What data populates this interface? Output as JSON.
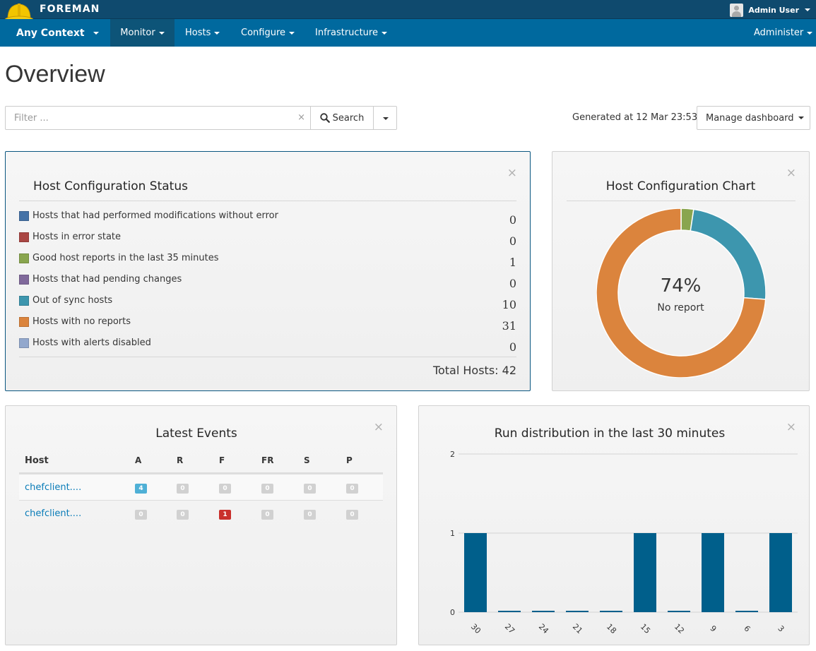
{
  "app": {
    "brand": "FOREMAN",
    "user": "Admin User"
  },
  "nav": {
    "context": "Any Context",
    "items": [
      "Monitor",
      "Hosts",
      "Configure",
      "Infrastructure"
    ],
    "admin": "Administer"
  },
  "page": {
    "title": "Overview"
  },
  "search": {
    "placeholder": "Filter ...",
    "clear": "×",
    "button": "Search",
    "generated": "Generated at 12 Mar 23:53",
    "manage": "Manage dashboard"
  },
  "status_widget": {
    "title": "Host Configuration Status",
    "rows": [
      {
        "label": "Hosts that had performed modifications without error",
        "value": "0",
        "color": "#4572a7"
      },
      {
        "label": "Hosts in error state",
        "value": "0",
        "color": "#aa4643"
      },
      {
        "label": "Good host reports in the last 35 minutes",
        "value": "1",
        "color": "#89a54e"
      },
      {
        "label": "Hosts that had pending changes",
        "value": "0",
        "color": "#80699b"
      },
      {
        "label": "Out of sync hosts",
        "value": "10",
        "color": "#3d96ae"
      },
      {
        "label": "Hosts with no reports",
        "value": "31",
        "color": "#db843d"
      },
      {
        "label": "Hosts with alerts disabled",
        "value": "0",
        "color": "#92a8cd"
      }
    ],
    "total": "Total Hosts: 42"
  },
  "donut_widget": {
    "title": "Host Configuration Chart",
    "percent": "74%",
    "label": "No report"
  },
  "events_widget": {
    "title": "Latest Events",
    "headers": [
      "Host",
      "A",
      "R",
      "F",
      "FR",
      "S",
      "P"
    ],
    "rows": [
      {
        "host": "chefclient....",
        "counts": [
          "4",
          "0",
          "0",
          "0",
          "0",
          "0"
        ]
      },
      {
        "host": "chefclient....",
        "counts": [
          "0",
          "0",
          "1",
          "0",
          "0",
          "0"
        ]
      }
    ]
  },
  "run_widget": {
    "title": "Run distribution in the last 30 minutes"
  },
  "chart_data": [
    {
      "type": "pie",
      "title": "Host Configuration Chart",
      "categories": [
        "Good host reports in the last 35 minutes",
        "Out of sync hosts",
        "Hosts with no reports"
      ],
      "values": [
        1,
        10,
        31
      ],
      "colors": [
        "#89a54e",
        "#3d96ae",
        "#db843d"
      ],
      "center_label": "74% No report"
    },
    {
      "type": "bar",
      "title": "Run distribution in the last 30 minutes",
      "categories": [
        "30",
        "27",
        "24",
        "21",
        "18",
        "15",
        "12",
        "9",
        "6",
        "3"
      ],
      "values": [
        1,
        0,
        0,
        0,
        0,
        1,
        0,
        1,
        0,
        1
      ],
      "yticks": [
        "0",
        "1",
        "2"
      ],
      "ylim": [
        0,
        2
      ],
      "color": "#005f8b",
      "grid": true
    }
  ]
}
